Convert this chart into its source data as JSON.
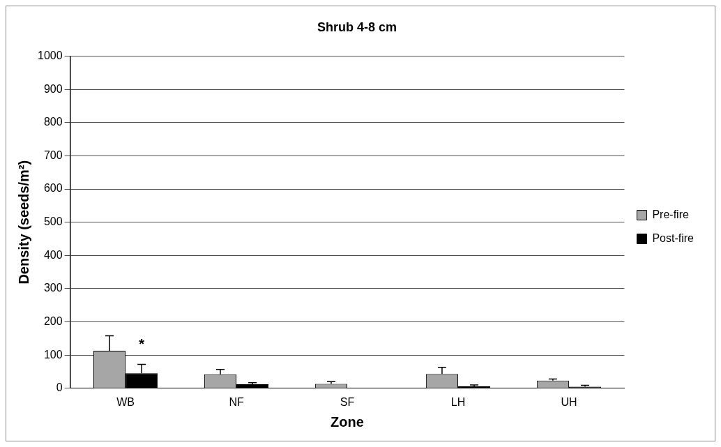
{
  "chart_data": {
    "type": "bar",
    "title": "Shrub 4-8 cm",
    "xlabel": "Zone",
    "ylabel": "Density (seeds/m²)",
    "categories": [
      "WB",
      "NF",
      "SF",
      "LH",
      "UH"
    ],
    "series": [
      {
        "name": "Pre-fire",
        "color": "#a6a6a6",
        "values": [
          113,
          42,
          13,
          43,
          23
        ],
        "errors": [
          45,
          15,
          7,
          20,
          5
        ]
      },
      {
        "name": "Post-fire",
        "color": "#000000",
        "values": [
          45,
          12,
          null,
          6,
          5
        ],
        "errors": [
          27,
          5,
          null,
          4,
          4
        ]
      }
    ],
    "ylim": [
      0,
      1000
    ],
    "yticks": [
      0,
      100,
      200,
      300,
      400,
      500,
      600,
      700,
      800,
      900,
      1000
    ],
    "grid": "y",
    "legend": "right",
    "annotations": [
      {
        "text": "*",
        "x": "WB",
        "y": 80
      }
    ]
  }
}
